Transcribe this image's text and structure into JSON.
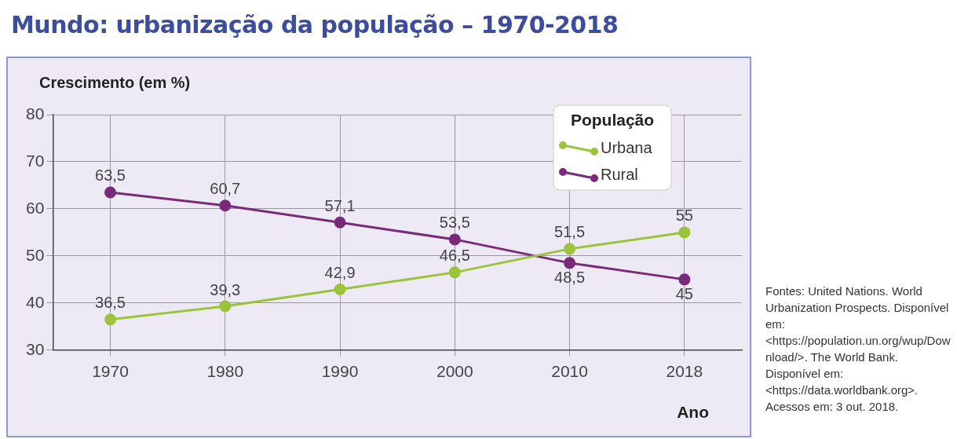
{
  "chart_data": {
    "type": "line",
    "title": "Mundo: urbanização da população – 1970-2018",
    "ylabel": "Crescimento (em %)",
    "xlabel": "Ano",
    "legend_title": "População",
    "categories": [
      "1970",
      "1980",
      "1990",
      "2000",
      "2010",
      "2018"
    ],
    "series": [
      {
        "name": "Urbana",
        "color": "#9cc43a",
        "values": [
          36.5,
          39.3,
          42.9,
          46.5,
          51.5,
          55
        ],
        "value_labels": [
          "36,5",
          "39,3",
          "42,9",
          "46,5",
          "51,5",
          "55"
        ]
      },
      {
        "name": "Rural",
        "color": "#7a2a7a",
        "values": [
          63.5,
          60.7,
          57.1,
          53.5,
          48.5,
          45
        ],
        "value_labels": [
          "63,5",
          "60,7",
          "57,1",
          "53,5",
          "48,5",
          "45"
        ]
      }
    ],
    "ylim": [
      30,
      80
    ],
    "yticks": [
      30,
      40,
      50,
      60,
      70,
      80
    ],
    "grid": true,
    "legend": "top right",
    "marker": "circle",
    "line_style": "solid",
    "annotations": [
      "Fontes: United Nations. World Urbanization Prospects. Disponível em: <https://population.un.org/wup/Download/>. The World Bank. Disponível em: <https://data.worldbank.org>. Acessos em: 3 out. 2018."
    ]
  }
}
